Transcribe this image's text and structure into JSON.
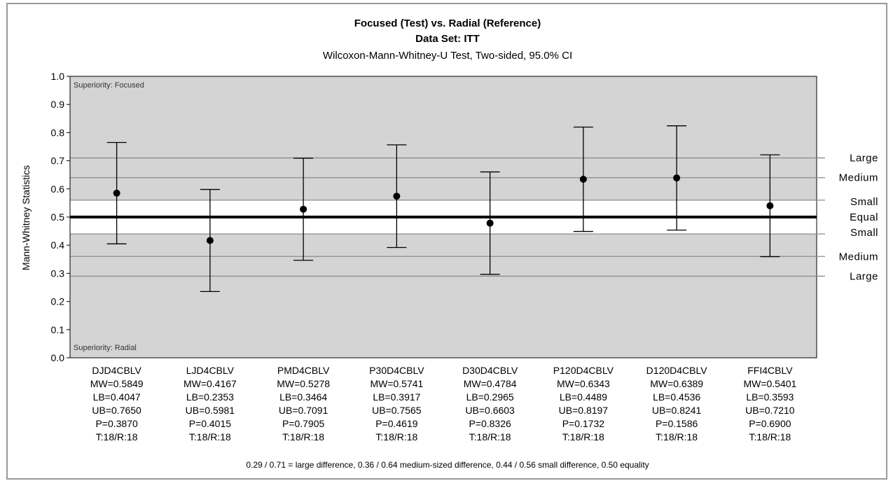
{
  "chart_data": {
    "type": "scatter",
    "title": "Focused (Test) vs. Radial (Reference)",
    "subtitle1": "Data Set: ITT",
    "subtitle2": "Wilcoxon-Mann-Whitney-U Test, Two-sided, 95.0% CI",
    "ylabel": "Mann-Whitney Statistics",
    "ylim": [
      0.0,
      1.0
    ],
    "yticks": [
      "0.0",
      "0.1",
      "0.2",
      "0.3",
      "0.4",
      "0.5",
      "0.6",
      "0.7",
      "0.8",
      "0.9",
      "1.0"
    ],
    "grid": false,
    "superiority_top": "Superiority: Focused",
    "superiority_bottom": "Superiority: Radial",
    "thresholds": [
      {
        "value": 0.71,
        "label": "Large"
      },
      {
        "value": 0.64,
        "label": "Medium"
      },
      {
        "value": 0.56,
        "label": "Small"
      },
      {
        "value": 0.5,
        "label": "Equal"
      },
      {
        "value": 0.44,
        "label": "Small"
      },
      {
        "value": 0.36,
        "label": "Medium"
      },
      {
        "value": 0.29,
        "label": "Large"
      }
    ],
    "categories": [
      {
        "name": "DJD4CBLV",
        "mw": 0.5849,
        "lb": 0.4047,
        "ub": 0.765,
        "lines": [
          "DJD4CBLV",
          "MW=0.5849",
          "LB=0.4047",
          "UB=0.7650",
          "P=0.3870",
          "T:18/R:18"
        ]
      },
      {
        "name": "LJD4CBLV",
        "mw": 0.4167,
        "lb": 0.2353,
        "ub": 0.5981,
        "lines": [
          "LJD4CBLV",
          "MW=0.4167",
          "LB=0.2353",
          "UB=0.5981",
          "P=0.4015",
          "T:18/R:18"
        ]
      },
      {
        "name": "PMD4CBLV",
        "mw": 0.5278,
        "lb": 0.3464,
        "ub": 0.7091,
        "lines": [
          "PMD4CBLV",
          "MW=0.5278",
          "LB=0.3464",
          "UB=0.7091",
          "P=0.7905",
          "T:18/R:18"
        ]
      },
      {
        "name": "P30D4CBLV",
        "mw": 0.5741,
        "lb": 0.3917,
        "ub": 0.7565,
        "lines": [
          "P30D4CBLV",
          "MW=0.5741",
          "LB=0.3917",
          "UB=0.7565",
          "P=0.4619",
          "T:18/R:18"
        ]
      },
      {
        "name": "D30D4CBLV",
        "mw": 0.4784,
        "lb": 0.2965,
        "ub": 0.6603,
        "lines": [
          "D30D4CBLV",
          "MW=0.4784",
          "LB=0.2965",
          "UB=0.6603",
          "P=0.8326",
          "T:18/R:18"
        ]
      },
      {
        "name": "P120D4CBLV",
        "mw": 0.6343,
        "lb": 0.4489,
        "ub": 0.8197,
        "lines": [
          "P120D4CBLV",
          "MW=0.6343",
          "LB=0.4489",
          "UB=0.8197",
          "P=0.1732",
          "T:18/R:18"
        ]
      },
      {
        "name": "D120D4CBLV",
        "mw": 0.6389,
        "lb": 0.4536,
        "ub": 0.8241,
        "lines": [
          "D120D4CBLV",
          "MW=0.6389",
          "LB=0.4536",
          "UB=0.8241",
          "P=0.1586",
          "T:18/R:18"
        ]
      },
      {
        "name": "FFI4CBLV",
        "mw": 0.5401,
        "lb": 0.3593,
        "ub": 0.721,
        "lines": [
          "FFI4CBLV",
          "MW=0.5401",
          "LB=0.3593",
          "UB=0.7210",
          "P=0.6900",
          "T:18/R:18"
        ]
      }
    ],
    "footnote": "0.29 / 0.71 = large difference, 0.36 / 0.64 medium-sized difference, 0.44 / 0.56 small difference, 0.50 equality",
    "colors": {
      "plot_bg": "#d4d4d4",
      "band_bg": "#ffffff",
      "line": "#000000",
      "threshold_line": "#8c8c8c"
    }
  }
}
